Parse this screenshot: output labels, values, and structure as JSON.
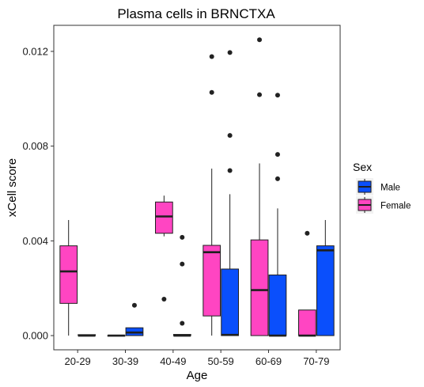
{
  "chart_data": {
    "type": "boxplot",
    "title": "Plasma cells in BRNCTXA",
    "xlabel": "Age",
    "ylabel": "xCell score",
    "categories": [
      "20-29",
      "30-39",
      "40-49",
      "50-59",
      "60-69",
      "70-79"
    ],
    "ylim": [
      -0.0006,
      0.0131
    ],
    "y_ticks": [
      "0.000",
      "0.004",
      "0.008",
      "0.012"
    ],
    "y_tick_values": [
      0.0,
      0.004,
      0.008,
      0.012
    ],
    "grid": false,
    "legend": {
      "title": "Sex",
      "position": "right"
    },
    "colors": {
      "Male": "#0a4ffc",
      "Female": "#ff45c2",
      "outline": "#1f1f1f"
    },
    "series": [
      {
        "name": "Male",
        "boxes": [
          {
            "category": "20-29",
            "lower": 0.0,
            "q1": 0.0,
            "median": 0.0,
            "q3": 4e-05,
            "upper": 4e-05,
            "outliers": []
          },
          {
            "category": "30-39",
            "lower": 0.0,
            "q1": 0.0,
            "median": 0.00013,
            "q3": 0.00033,
            "upper": 0.00033,
            "outliers": [
              0.00128
            ]
          },
          {
            "category": "40-49",
            "lower": 0.0,
            "q1": 0.0,
            "median": 0.0,
            "q3": 5e-05,
            "upper": 5e-05,
            "outliers": [
              0.00052,
              0.00302,
              0.00415
            ]
          },
          {
            "category": "50-59",
            "lower": 0.0,
            "q1": 0.0,
            "median": 3e-05,
            "q3": 0.00281,
            "upper": 0.00597,
            "outliers": [
              0.00697,
              0.00845,
              0.01195
            ]
          },
          {
            "category": "60-69",
            "lower": 0.0,
            "q1": 0.0,
            "median": 0.0,
            "q3": 0.00256,
            "upper": 0.00537,
            "outliers": [
              0.00662,
              0.00765,
              0.01015
            ]
          },
          {
            "category": "70-79",
            "lower": 0.0,
            "q1": 0.0,
            "median": 0.0036,
            "q3": 0.00379,
            "upper": 0.00488,
            "outliers": []
          }
        ]
      },
      {
        "name": "Female",
        "boxes": [
          {
            "category": "20-29",
            "lower": 0.0,
            "q1": 0.00136,
            "median": 0.00271,
            "q3": 0.00379,
            "upper": 0.00488,
            "outliers": []
          },
          {
            "category": "30-39",
            "lower": 0.0,
            "q1": 0.0,
            "median": 0.0,
            "q3": 0.0,
            "upper": 0.0,
            "outliers": []
          },
          {
            "category": "40-49",
            "lower": 0.00419,
            "q1": 0.00432,
            "median": 0.00503,
            "q3": 0.00564,
            "upper": 0.00591,
            "outliers": [
              0.00154
            ]
          },
          {
            "category": "50-59",
            "lower": 0.0,
            "q1": 0.00083,
            "median": 0.00352,
            "q3": 0.00381,
            "upper": 0.00705,
            "outliers": [
              0.01027,
              0.01178
            ]
          },
          {
            "category": "60-69",
            "lower": 0.0,
            "q1": 0.0,
            "median": 0.00192,
            "q3": 0.00404,
            "upper": 0.00727,
            "outliers": [
              0.01017,
              0.01249
            ]
          },
          {
            "category": "70-79",
            "lower": 0.0,
            "q1": 0.0,
            "median": 0.0,
            "q3": 0.00108,
            "upper": 0.00108,
            "outliers": [
              0.00432
            ]
          }
        ]
      }
    ]
  }
}
